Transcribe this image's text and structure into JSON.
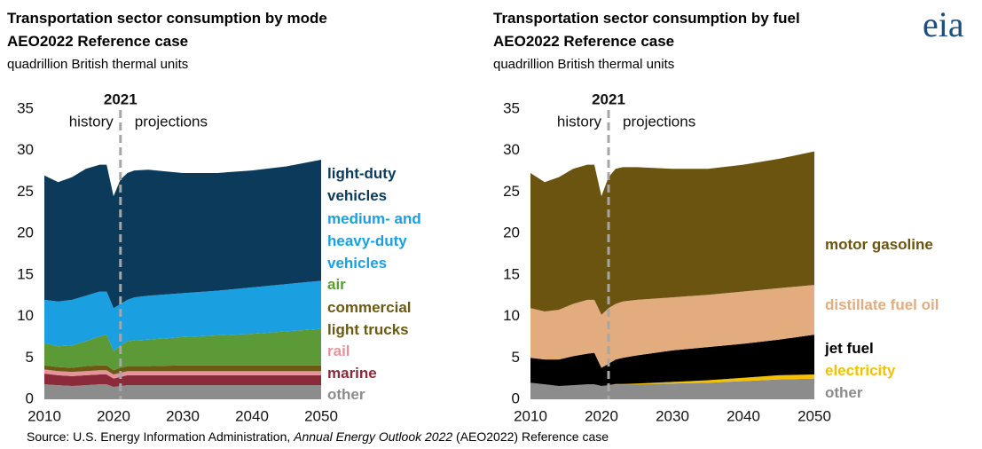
{
  "logo": "eia",
  "source": {
    "prefix": "Source: U.S. Energy Information Administration, ",
    "italic": "Annual Energy Outlook 2022",
    "suffix": " (AEO2022) Reference case"
  },
  "chart_data": [
    {
      "type": "stacked_area",
      "title": "Transportation sector consumption by mode",
      "subtitle": "AEO2022 Reference case",
      "units": "quadrillion British thermal units",
      "divider": 2021,
      "history_label": "history",
      "projections_label": "projections",
      "x": [
        2010,
        2012,
        2014,
        2016,
        2018,
        2019,
        2020,
        2021,
        2022,
        2023,
        2025,
        2030,
        2035,
        2040,
        2045,
        2050
      ],
      "xlim": [
        2010,
        2050
      ],
      "xticks": [
        2010,
        2020,
        2030,
        2040,
        2050
      ],
      "ylim": [
        0,
        35
      ],
      "yticks": [
        0,
        5,
        10,
        15,
        20,
        25,
        30,
        35
      ],
      "series": [
        {
          "name": "other",
          "color": "#8c8c8c",
          "values": [
            1.8,
            1.7,
            1.6,
            1.7,
            1.8,
            1.8,
            1.5,
            1.6,
            1.7,
            1.7,
            1.7,
            1.7,
            1.7,
            1.7,
            1.7,
            1.7
          ]
        },
        {
          "name": "marine",
          "color": "#8b2a3a",
          "values": [
            1.3,
            1.2,
            1.2,
            1.2,
            1.2,
            1.2,
            1.0,
            1.1,
            1.2,
            1.2,
            1.2,
            1.2,
            1.2,
            1.2,
            1.2,
            1.2
          ]
        },
        {
          "name": "rail",
          "color": "#e6939b",
          "values": [
            0.5,
            0.5,
            0.5,
            0.5,
            0.5,
            0.5,
            0.5,
            0.5,
            0.5,
            0.5,
            0.5,
            0.5,
            0.5,
            0.5,
            0.5,
            0.5
          ]
        },
        {
          "name": "commercial light trucks",
          "color": "#6b5a14",
          "values": [
            0.5,
            0.5,
            0.5,
            0.6,
            0.6,
            0.6,
            0.5,
            0.6,
            0.6,
            0.6,
            0.6,
            0.7,
            0.7,
            0.7,
            0.7,
            0.7
          ]
        },
        {
          "name": "air",
          "color": "#5b9a37",
          "values": [
            2.7,
            2.5,
            2.7,
            3.0,
            3.5,
            3.7,
            2.3,
            2.7,
            3.0,
            3.1,
            3.2,
            3.4,
            3.6,
            3.8,
            4.1,
            4.4
          ]
        },
        {
          "name": "medium- and heavy-duty vehicles",
          "color": "#1aa0e0",
          "values": [
            5.2,
            5.4,
            5.5,
            5.5,
            5.4,
            5.2,
            5.2,
            5.0,
            5.0,
            5.2,
            5.3,
            5.3,
            5.4,
            5.6,
            5.7,
            5.8
          ]
        },
        {
          "name": "light-duty vehicles",
          "color": "#0b3a5a",
          "values": [
            15.0,
            14.4,
            14.8,
            15.3,
            15.3,
            15.3,
            13.5,
            15.0,
            15.3,
            15.3,
            15.2,
            14.5,
            14.2,
            14.1,
            14.2,
            14.6
          ]
        }
      ]
    },
    {
      "type": "stacked_area",
      "title": "Transportation sector consumption by fuel",
      "subtitle": "AEO2022 Reference case",
      "units": "quadrillion British thermal units",
      "divider": 2021,
      "history_label": "history",
      "projections_label": "projections",
      "x": [
        2010,
        2012,
        2014,
        2016,
        2018,
        2019,
        2020,
        2021,
        2022,
        2023,
        2025,
        2030,
        2035,
        2040,
        2045,
        2050
      ],
      "xlim": [
        2010,
        2050
      ],
      "xticks": [
        2010,
        2020,
        2030,
        2040,
        2050
      ],
      "ylim": [
        0,
        35
      ],
      "yticks": [
        0,
        5,
        10,
        15,
        20,
        25,
        30,
        35
      ],
      "series": [
        {
          "name": "other",
          "color": "#8c8c8c",
          "values": [
            2.0,
            1.8,
            1.6,
            1.7,
            1.8,
            1.8,
            1.6,
            1.7,
            1.8,
            1.8,
            1.8,
            1.9,
            2.0,
            2.2,
            2.4,
            2.5
          ]
        },
        {
          "name": "electricity",
          "color": "#f5c000",
          "values": [
            0,
            0,
            0,
            0,
            0,
            0,
            0,
            0,
            0.05,
            0.05,
            0.1,
            0.2,
            0.3,
            0.4,
            0.5,
            0.5
          ]
        },
        {
          "name": "jet fuel",
          "color": "#000000",
          "values": [
            3.0,
            3.0,
            3.2,
            3.5,
            3.7,
            3.8,
            2.2,
            2.6,
            2.95,
            3.15,
            3.4,
            3.8,
            4.0,
            4.1,
            4.3,
            4.8
          ]
        },
        {
          "name": "distillate fuel oil",
          "color": "#e3ac7e",
          "values": [
            6.0,
            5.8,
            6.0,
            6.3,
            6.5,
            6.4,
            6.4,
            6.7,
            6.7,
            6.8,
            6.7,
            6.4,
            6.3,
            6.3,
            6.2,
            6.0
          ]
        },
        {
          "name": "motor gasoline",
          "color": "#6b5410",
          "values": [
            16.3,
            15.6,
            16.0,
            16.3,
            16.3,
            16.3,
            14.3,
            15.8,
            16.3,
            16.2,
            16.0,
            15.5,
            15.2,
            15.3,
            15.6,
            16.1
          ]
        }
      ]
    }
  ]
}
